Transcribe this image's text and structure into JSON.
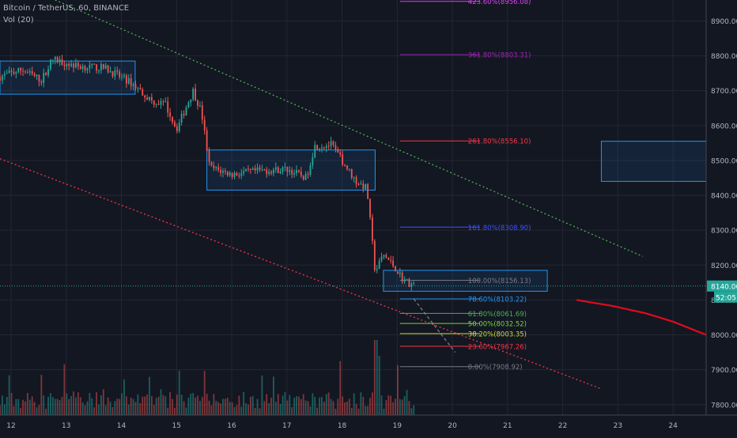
{
  "header": {
    "symbol": "Bitcoin / TetherUS, 60, BINANCE",
    "indicator": "Vol (20)"
  },
  "colors": {
    "background": "#131722",
    "grid": "#242733",
    "up": "#26a69a",
    "down": "#ef5350",
    "box": "#2196f3",
    "price_line": "#26a69a"
  },
  "chart_data": {
    "type": "candlestick",
    "title": "",
    "xlabel": "",
    "ylabel": "",
    "x_axis_labels": [
      "12",
      "13",
      "14",
      "15",
      "16",
      "17",
      "18",
      "19",
      "20",
      "21",
      "22",
      "23",
      "24"
    ],
    "y_axis_labels": [
      "7800.00",
      "7900.00",
      "8000.00",
      "8100.00",
      "8200.00",
      "8300.00",
      "8400.00",
      "8500.00",
      "8600.00",
      "8700.00",
      "8800.00",
      "8900.00"
    ],
    "ylim": [
      7770,
      8960
    ],
    "xlim": [
      11.8,
      24.6
    ],
    "current_price": {
      "label": "8140.00",
      "value": 8140
    },
    "countdown_label": "52:05",
    "price_segments": [
      {
        "x": 11.8,
        "price": 8740
      },
      {
        "x": 12.2,
        "price": 8760
      },
      {
        "x": 12.55,
        "price": 8730
      },
      {
        "x": 12.75,
        "price": 8790
      },
      {
        "x": 13.2,
        "price": 8770
      },
      {
        "x": 13.7,
        "price": 8765
      },
      {
        "x": 14.2,
        "price": 8720
      },
      {
        "x": 14.55,
        "price": 8670
      },
      {
        "x": 14.8,
        "price": 8660
      },
      {
        "x": 15.0,
        "price": 8590
      },
      {
        "x": 15.3,
        "price": 8700
      },
      {
        "x": 15.45,
        "price": 8640
      },
      {
        "x": 15.6,
        "price": 8480
      },
      {
        "x": 16.0,
        "price": 8460
      },
      {
        "x": 16.5,
        "price": 8470
      },
      {
        "x": 17.0,
        "price": 8475
      },
      {
        "x": 17.35,
        "price": 8450
      },
      {
        "x": 17.5,
        "price": 8540
      },
      {
        "x": 17.8,
        "price": 8545
      },
      {
        "x": 18.0,
        "price": 8500
      },
      {
        "x": 18.25,
        "price": 8440
      },
      {
        "x": 18.45,
        "price": 8420
      },
      {
        "x": 18.6,
        "price": 8180
      },
      {
        "x": 18.75,
        "price": 8230
      },
      {
        "x": 18.95,
        "price": 8195
      },
      {
        "x": 19.1,
        "price": 8160
      },
      {
        "x": 19.3,
        "price": 8140
      }
    ],
    "candle_x_range": [
      11.8,
      19.3
    ],
    "volume_ylim": [
      0,
      100
    ],
    "fibonacci": [
      {
        "label": "423.60%(8956.08)",
        "price": 8956.08,
        "color": "#e040fb"
      },
      {
        "label": "361.80%(8803.31)",
        "price": 8803.31,
        "color": "#9c27b0"
      },
      {
        "label": "261.80%(8556.10)",
        "price": 8556.1,
        "color": "#f23645"
      },
      {
        "label": "161.80%(8308.90)",
        "price": 8308.9,
        "color": "#3f51ff"
      },
      {
        "label": "100.00%(8156.13)",
        "price": 8156.13,
        "color": "#787b86"
      },
      {
        "label": "78.60%(8103.22)",
        "price": 8103.22,
        "color": "#2196f3"
      },
      {
        "label": "61.80%(8061.69)",
        "price": 8061.69,
        "color": "#4caf50"
      },
      {
        "label": "50.00%(8032.52)",
        "price": 8032.52,
        "color": "#76d33a"
      },
      {
        "label": "38.20%(8003.35)",
        "price": 8003.35,
        "color": "#cddc39"
      },
      {
        "label": "23.60%(7967.26)",
        "price": 7967.26,
        "color": "#f23645"
      },
      {
        "label": "0.00%(7908.92)",
        "price": 7908.92,
        "color": "#787b86"
      }
    ],
    "fib_x_range": [
      19.05,
      20.5
    ],
    "boxes": [
      {
        "x0": 11.8,
        "x1": 14.25,
        "y0": 8690,
        "y1": 8785
      },
      {
        "x0": 15.55,
        "x1": 18.6,
        "y0": 8415,
        "y1": 8530
      },
      {
        "x0": 18.75,
        "x1": 21.72,
        "y0": 8125,
        "y1": 8185
      },
      {
        "x0": 22.7,
        "x1": 24.6,
        "y0": 8440,
        "y1": 8555
      }
    ],
    "trendlines": [
      {
        "x0": 12.8,
        "y0": 8960,
        "x1": 23.45,
        "y1": 8225,
        "color": "#4caf50",
        "style": "dotted"
      },
      {
        "x0": 11.8,
        "y0": 8505,
        "x1": 22.7,
        "y1": 7845,
        "color": "#f23645",
        "style": "dotted"
      },
      {
        "x0": 19.3,
        "y0": 8103,
        "x1": 20.05,
        "y1": 7950,
        "color": "#787b86",
        "style": "dashed"
      }
    ],
    "projection_curve": {
      "points": [
        [
          22.25,
          8100
        ],
        [
          22.9,
          8083
        ],
        [
          23.5,
          8062
        ],
        [
          24.0,
          8038
        ],
        [
          24.6,
          8000
        ]
      ],
      "color": "#e00b1c"
    }
  }
}
